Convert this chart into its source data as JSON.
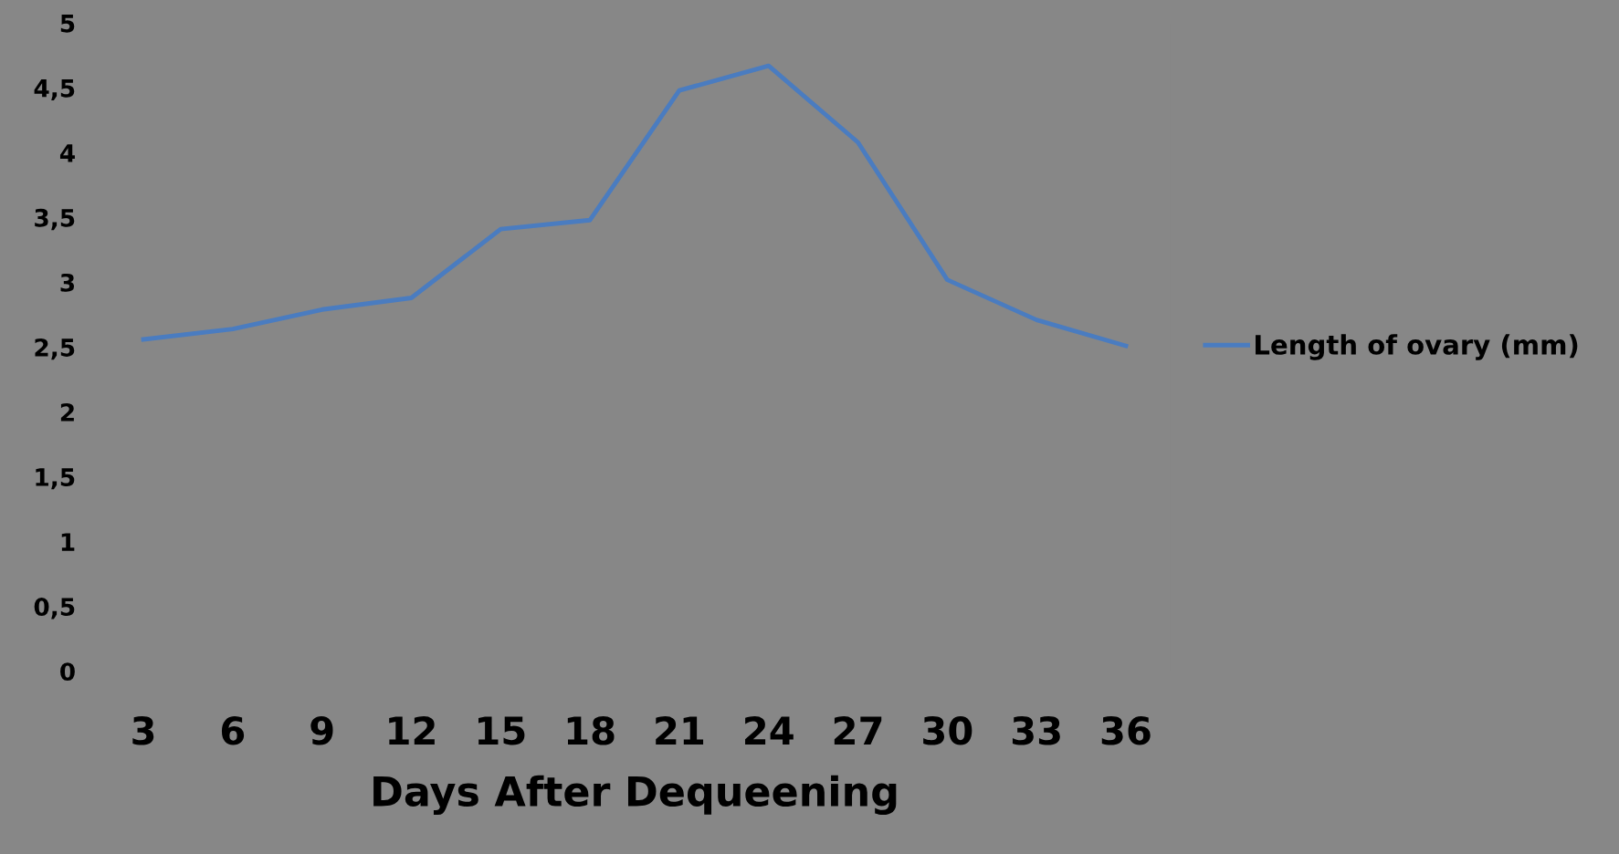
{
  "chart_data": {
    "type": "line",
    "xlabel": "Days After Dequeening",
    "categories": [
      "3",
      "6",
      "9",
      "12",
      "15",
      "18",
      "21",
      "24",
      "27",
      "30",
      "33",
      "36"
    ],
    "series": [
      {
        "name": "Length of ovary (mm)",
        "color": "#4a7cc0",
        "values": [
          2.56,
          2.64,
          2.79,
          2.88,
          3.41,
          3.48,
          4.48,
          4.67,
          4.08,
          3.02,
          2.71,
          2.51
        ]
      }
    ],
    "ylim": [
      0,
      5
    ],
    "yticks": [
      0,
      {
        "value": 0.5,
        "label": "0,5"
      },
      1,
      {
        "value": 1.5,
        "label": "1,5"
      },
      2,
      {
        "value": 2.5,
        "label": "2,5"
      },
      3,
      {
        "value": 3.5,
        "label": "3,5"
      },
      4,
      {
        "value": 4.5,
        "label": "4,5"
      },
      5
    ],
    "grid": false,
    "legend": "right",
    "marker": "none",
    "line_style": "solid"
  }
}
